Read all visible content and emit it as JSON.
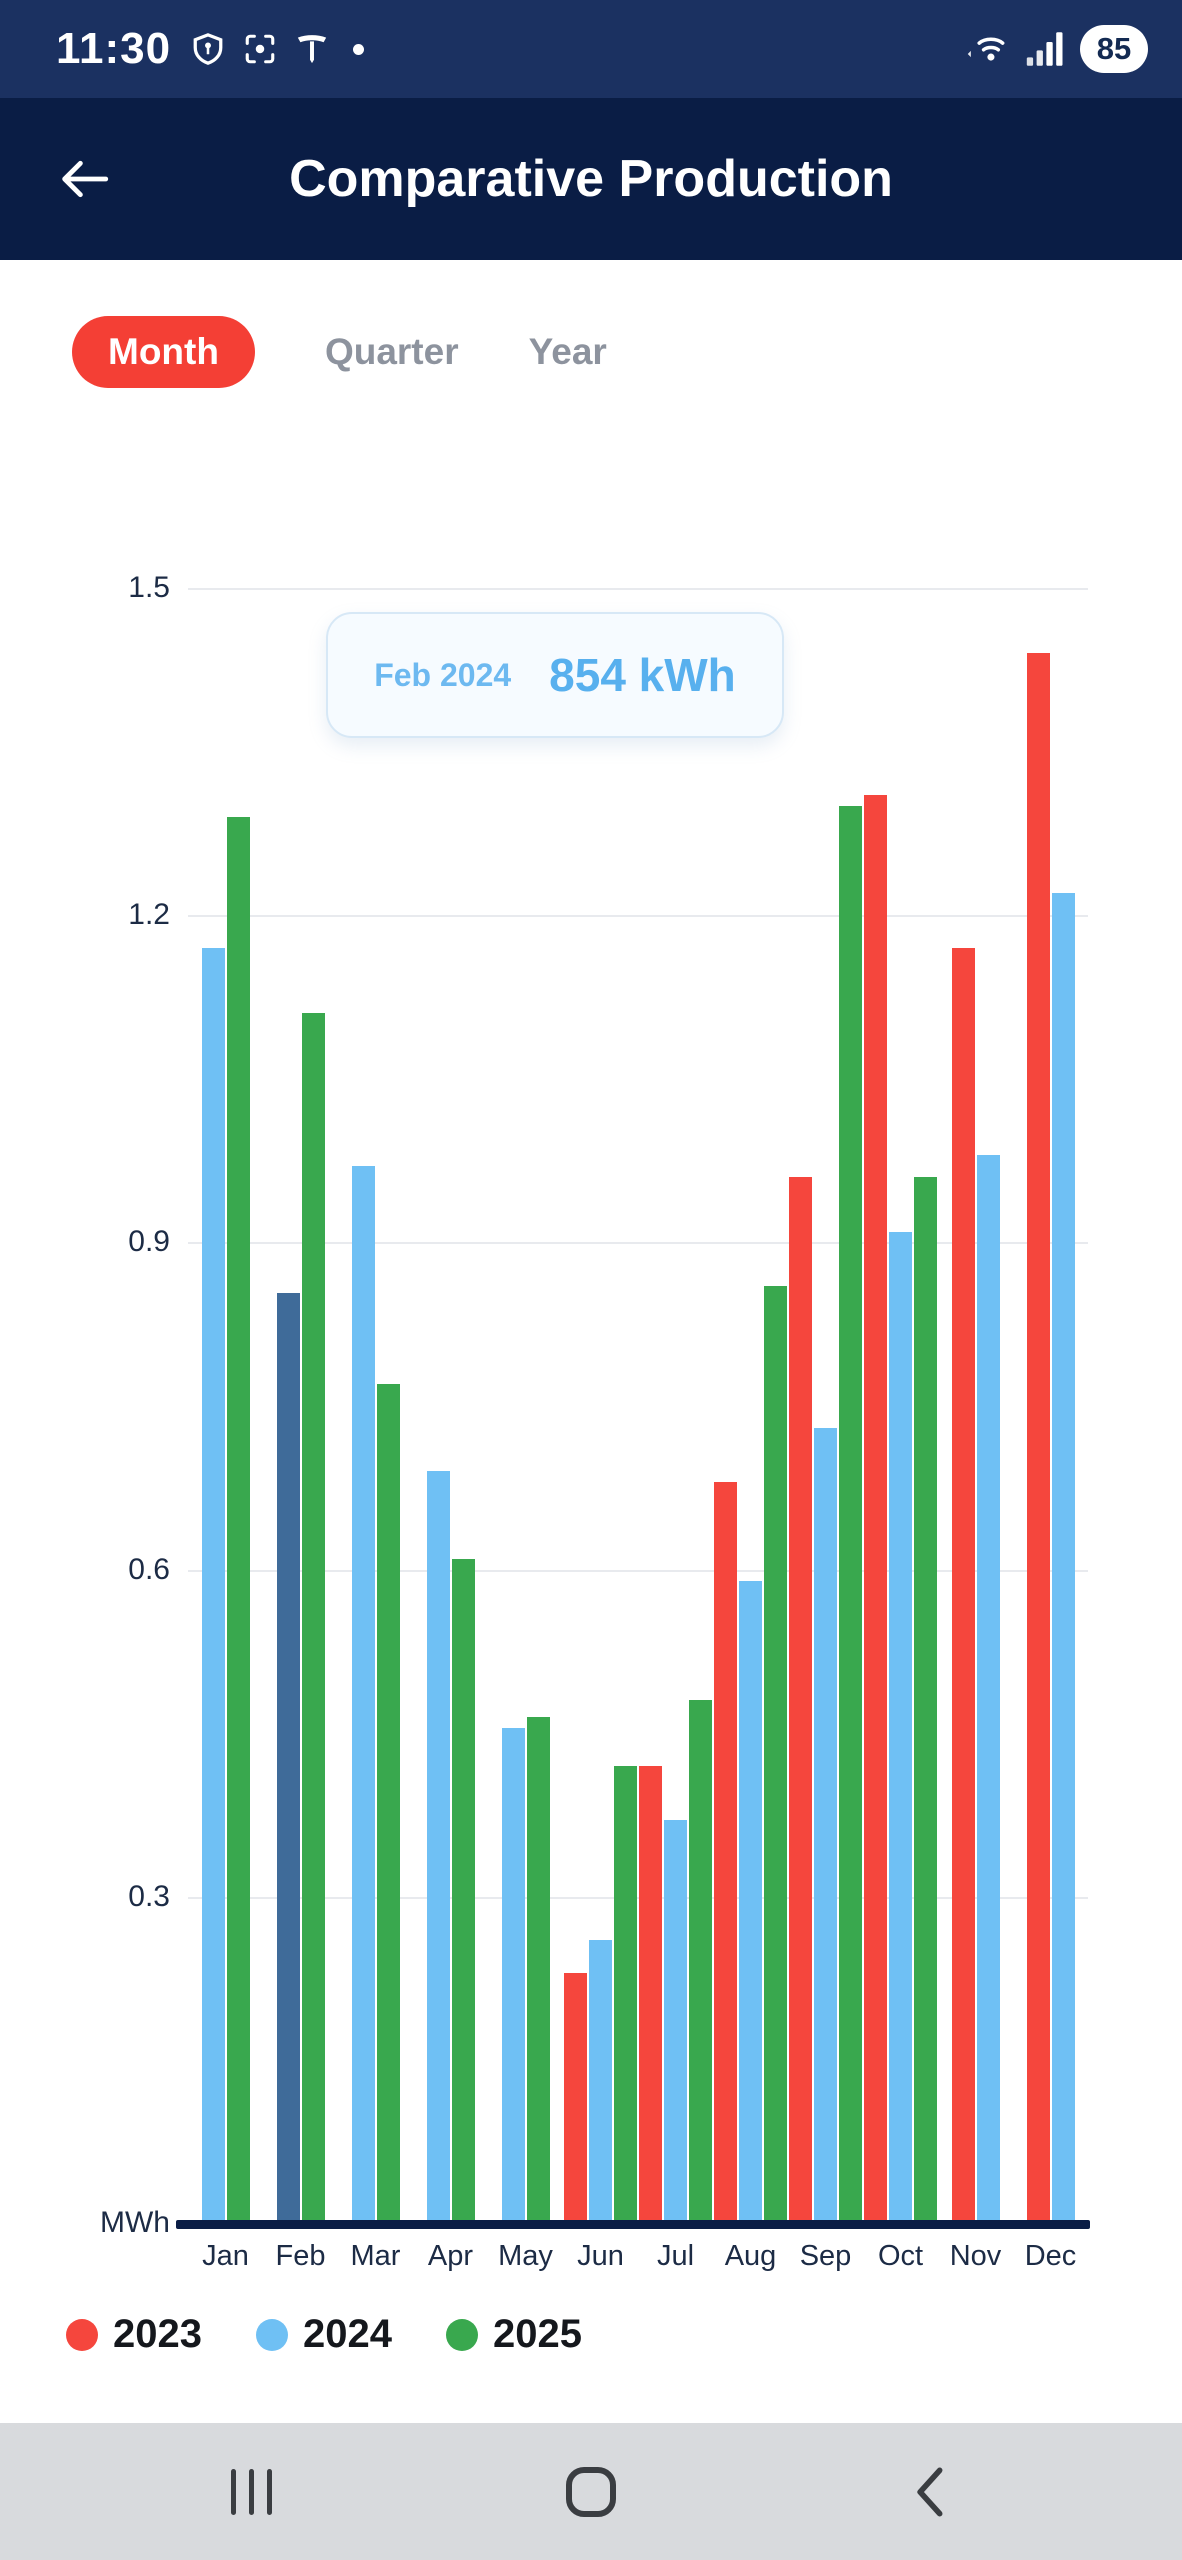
{
  "status_bar": {
    "time": "11:30",
    "battery_level": "85",
    "icons_left": [
      "vpn-shield-icon",
      "screenshot-icon",
      "tesla-icon",
      "notification-dot"
    ],
    "icons_right": [
      "wifi-icon",
      "signal-icon",
      "battery-pill"
    ]
  },
  "header": {
    "title": "Comparative Production",
    "icons": [
      "back-arrow-icon"
    ]
  },
  "tabs": [
    {
      "label": "Month",
      "selected": true
    },
    {
      "label": "Quarter",
      "selected": false
    },
    {
      "label": "Year",
      "selected": false
    }
  ],
  "tooltip": {
    "label": "Feb 2024",
    "value": "854 kWh"
  },
  "chart_data": {
    "type": "bar",
    "title": "Comparative Production",
    "unit": "MWh",
    "categories": [
      "Jan",
      "Feb",
      "Mar",
      "Apr",
      "May",
      "Jun",
      "Jul",
      "Aug",
      "Sep",
      "Oct",
      "Nov",
      "Dec"
    ],
    "y_ticks": [
      0.3,
      0.6,
      0.9,
      1.2,
      1.5
    ],
    "ylim": [
      0,
      1.5
    ],
    "grid": true,
    "legend_position": "bottom",
    "series": [
      {
        "name": "2023",
        "color": "#f5463d",
        "values": [
          null,
          null,
          null,
          null,
          null,
          0.23,
          0.42,
          0.68,
          0.96,
          1.31,
          1.17,
          1.44
        ]
      },
      {
        "name": "2024",
        "color": "#6fc0f4",
        "values": [
          1.17,
          0.854,
          0.97,
          0.69,
          0.455,
          0.26,
          0.37,
          0.59,
          0.73,
          0.91,
          0.98,
          1.22
        ]
      },
      {
        "name": "2025",
        "color": "#39a84e",
        "values": [
          1.29,
          1.11,
          0.77,
          0.61,
          0.465,
          0.42,
          0.48,
          0.86,
          1.3,
          0.96,
          null,
          null
        ]
      }
    ],
    "selected_bar": {
      "series": "2024",
      "category": "Feb",
      "color": "#3f6b99"
    },
    "legend": [
      {
        "label": "2023",
        "color": "#f5463d"
      },
      {
        "label": "2024",
        "color": "#6fc0f4"
      },
      {
        "label": "2025",
        "color": "#39a84e"
      }
    ]
  },
  "nav_bar": {
    "icons": [
      "recents-icon",
      "home-icon",
      "back-icon"
    ]
  }
}
